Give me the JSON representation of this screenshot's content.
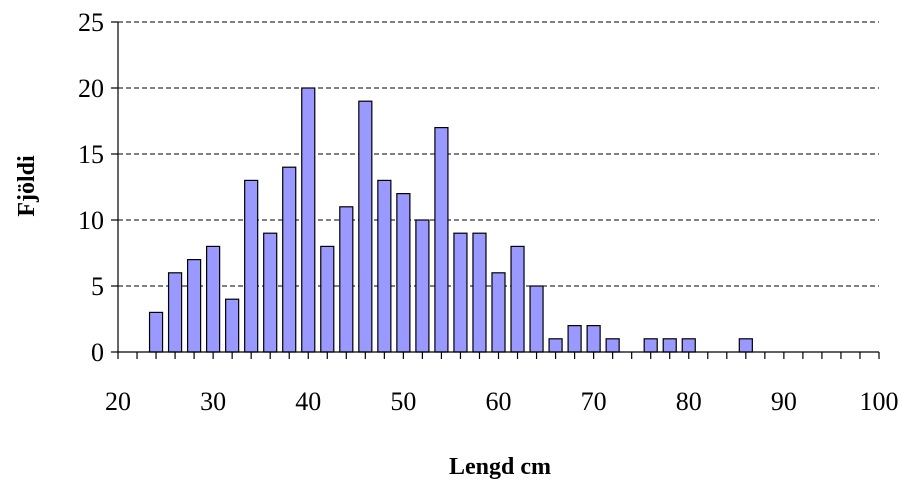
{
  "chart_data": {
    "type": "bar",
    "xlabel": "Lengd cm",
    "ylabel": "Fjöldi",
    "xlim": [
      20,
      100
    ],
    "ylim": [
      0,
      25
    ],
    "x_ticks": [
      20,
      30,
      40,
      50,
      60,
      70,
      80,
      90,
      100
    ],
    "y_ticks": [
      0,
      5,
      10,
      15,
      20,
      25
    ],
    "bin_width": 2,
    "grid": "horizontal-dashed",
    "bar_color": "#9999ff",
    "bins": [
      24,
      26,
      28,
      30,
      32,
      34,
      36,
      38,
      40,
      42,
      44,
      46,
      48,
      50,
      52,
      54,
      56,
      58,
      60,
      62,
      64,
      66,
      68,
      70,
      72,
      74,
      76,
      78,
      80,
      82,
      84,
      86
    ],
    "values": [
      3,
      6,
      7,
      8,
      4,
      13,
      9,
      14,
      20,
      8,
      11,
      19,
      13,
      12,
      10,
      17,
      9,
      9,
      6,
      8,
      5,
      1,
      2,
      2,
      1,
      0,
      1,
      1,
      1,
      0,
      0,
      1
    ]
  }
}
